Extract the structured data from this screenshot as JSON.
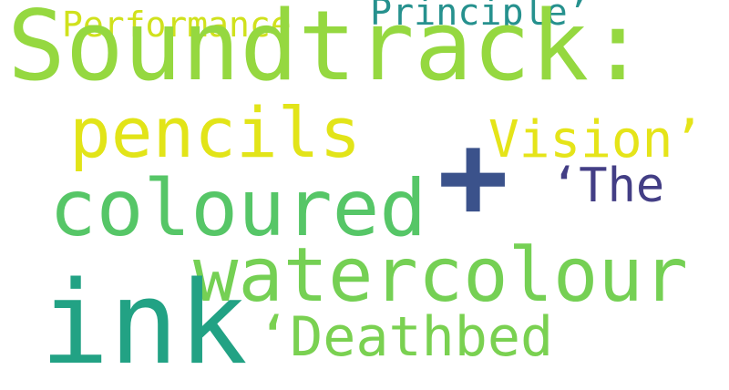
{
  "words": {
    "soundtrack": {
      "text": "Soundtrack:",
      "color": "#95d840"
    },
    "pencils": {
      "text": "pencils",
      "color": "#e2e418"
    },
    "coloured": {
      "text": "coloured",
      "color": "#56c667"
    },
    "watercolour": {
      "text": "watercolour",
      "color": "#75d054"
    },
    "ink": {
      "text": "ink",
      "color": "#22a284"
    },
    "deathbed": {
      "text": "‘Deathbed",
      "color": "#7ad151"
    },
    "vision": {
      "text": "Vision’",
      "color": "#e5e419"
    },
    "the": {
      "text": "‘The",
      "color": "#433e85"
    },
    "principle": {
      "text": "Principle’",
      "color": "#26918e"
    },
    "performance": {
      "text": "Performance",
      "color": "#d0e11c"
    },
    "plus": {
      "text": "+",
      "color": "#3b528b"
    }
  }
}
